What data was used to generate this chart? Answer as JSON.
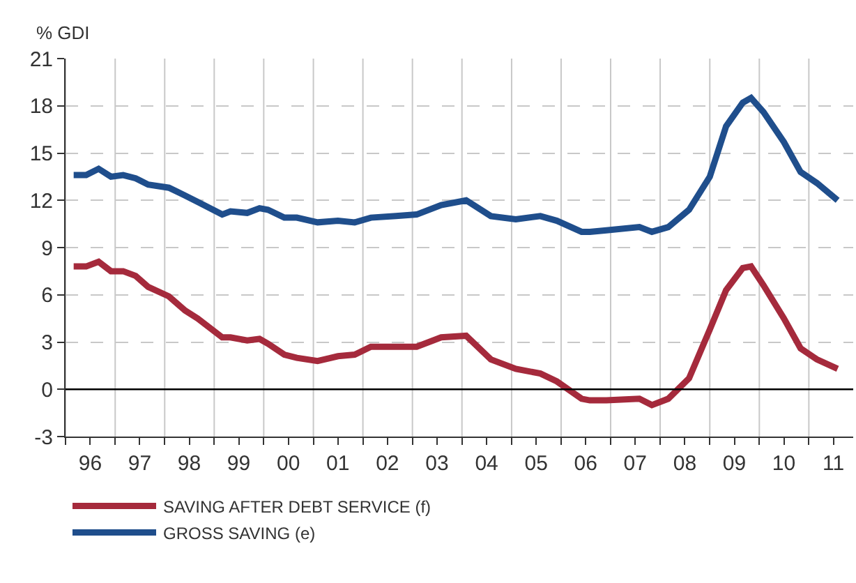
{
  "chart_data": {
    "type": "line",
    "ylabel": "% GDI",
    "x": [
      "1996-03",
      "1996-06",
      "1996-09",
      "1996-12",
      "1997-03",
      "1997-06",
      "1997-09",
      "1998-02",
      "1998-06",
      "1998-09",
      "1999-03",
      "1999-05",
      "1999-09",
      "1999-12",
      "2000-02",
      "2000-06",
      "2000-09",
      "2001-02",
      "2001-07",
      "2001-11",
      "2002-03",
      "2002-09",
      "2003-02",
      "2003-08",
      "2004-02",
      "2004-08",
      "2005-02",
      "2005-08",
      "2005-12",
      "2006-06",
      "2006-08",
      "2006-12",
      "2007-08",
      "2007-11",
      "2008-03",
      "2008-08",
      "2009-01",
      "2009-05",
      "2009-09",
      "2009-11",
      "2010-02",
      "2010-07",
      "2010-11",
      "2011-03",
      "2011-08"
    ],
    "series": [
      {
        "name": "SAVING AFTER DEBT SERVICE (f)",
        "color": "#a52a3c",
        "values": [
          7.8,
          7.8,
          8.1,
          7.5,
          7.5,
          7.2,
          6.5,
          5.9,
          5.0,
          4.5,
          3.3,
          3.3,
          3.1,
          3.2,
          2.9,
          2.2,
          2.0,
          1.8,
          2.1,
          2.2,
          2.7,
          2.7,
          2.7,
          3.3,
          3.4,
          1.9,
          1.3,
          1.0,
          0.5,
          -0.6,
          -0.7,
          -0.7,
          -0.6,
          -1.0,
          -0.6,
          0.7,
          3.8,
          6.3,
          7.7,
          7.8,
          6.6,
          4.5,
          2.6,
          1.9,
          1.3
        ]
      },
      {
        "name": "GROSS SAVING (e)",
        "color": "#1f4e8c",
        "values": [
          13.6,
          13.6,
          14.0,
          13.5,
          13.6,
          13.4,
          13.0,
          12.8,
          12.3,
          11.9,
          11.1,
          11.3,
          11.2,
          11.5,
          11.4,
          10.9,
          10.9,
          10.6,
          10.7,
          10.6,
          10.9,
          11.0,
          11.1,
          11.7,
          12.0,
          11.0,
          10.8,
          11.0,
          10.7,
          10.0,
          10.0,
          10.1,
          10.3,
          10.0,
          10.3,
          11.4,
          13.5,
          16.7,
          18.2,
          18.5,
          17.6,
          15.7,
          13.8,
          13.1,
          12.0
        ]
      }
    ],
    "xlim": [
      "1996-01-01",
      "2011-11-24"
    ],
    "xticks": [
      {
        "value": "1996",
        "label": null
      },
      {
        "value": "1996-07",
        "label": "96"
      },
      {
        "value": "1997",
        "label": null
      },
      {
        "value": "1997-07",
        "label": "97"
      },
      {
        "value": "1998",
        "label": null
      },
      {
        "value": "1998-07",
        "label": "98"
      },
      {
        "value": "1999",
        "label": null
      },
      {
        "value": "1999-07",
        "label": "99"
      },
      {
        "value": "2000",
        "label": null
      },
      {
        "value": "2000-07",
        "label": "00"
      },
      {
        "value": "2001",
        "label": null
      },
      {
        "value": "2001-07",
        "label": "01"
      },
      {
        "value": "2002",
        "label": null
      },
      {
        "value": "2002-07",
        "label": "02"
      },
      {
        "value": "2003",
        "label": null
      },
      {
        "value": "2003-07",
        "label": "03"
      },
      {
        "value": "2004",
        "label": null
      },
      {
        "value": "2004-07",
        "label": "04"
      },
      {
        "value": "2005",
        "label": null
      },
      {
        "value": "2005-07",
        "label": "05"
      },
      {
        "value": "2006",
        "label": null
      },
      {
        "value": "2006-07",
        "label": "06"
      },
      {
        "value": "2007",
        "label": null
      },
      {
        "value": "2007-07",
        "label": "07"
      },
      {
        "value": "2008",
        "label": null
      },
      {
        "value": "2008-07",
        "label": "08"
      },
      {
        "value": "2009",
        "label": null
      },
      {
        "value": "2009-07",
        "label": "09"
      },
      {
        "value": "2010",
        "label": null
      },
      {
        "value": "2010-07",
        "label": "10"
      },
      {
        "value": "2011",
        "label": null
      },
      {
        "value": "2011-07",
        "label": "11"
      }
    ],
    "ylim": [
      -3,
      21
    ],
    "yticks": [
      -3,
      0,
      3,
      6,
      9,
      12,
      15,
      18,
      21
    ],
    "ref_lines": [
      {
        "axis": "y",
        "value": 0,
        "color": "#000000",
        "line_style": "solid"
      }
    ],
    "grid": true,
    "legend": "bottom",
    "marker": "none",
    "line_style": "solid"
  }
}
